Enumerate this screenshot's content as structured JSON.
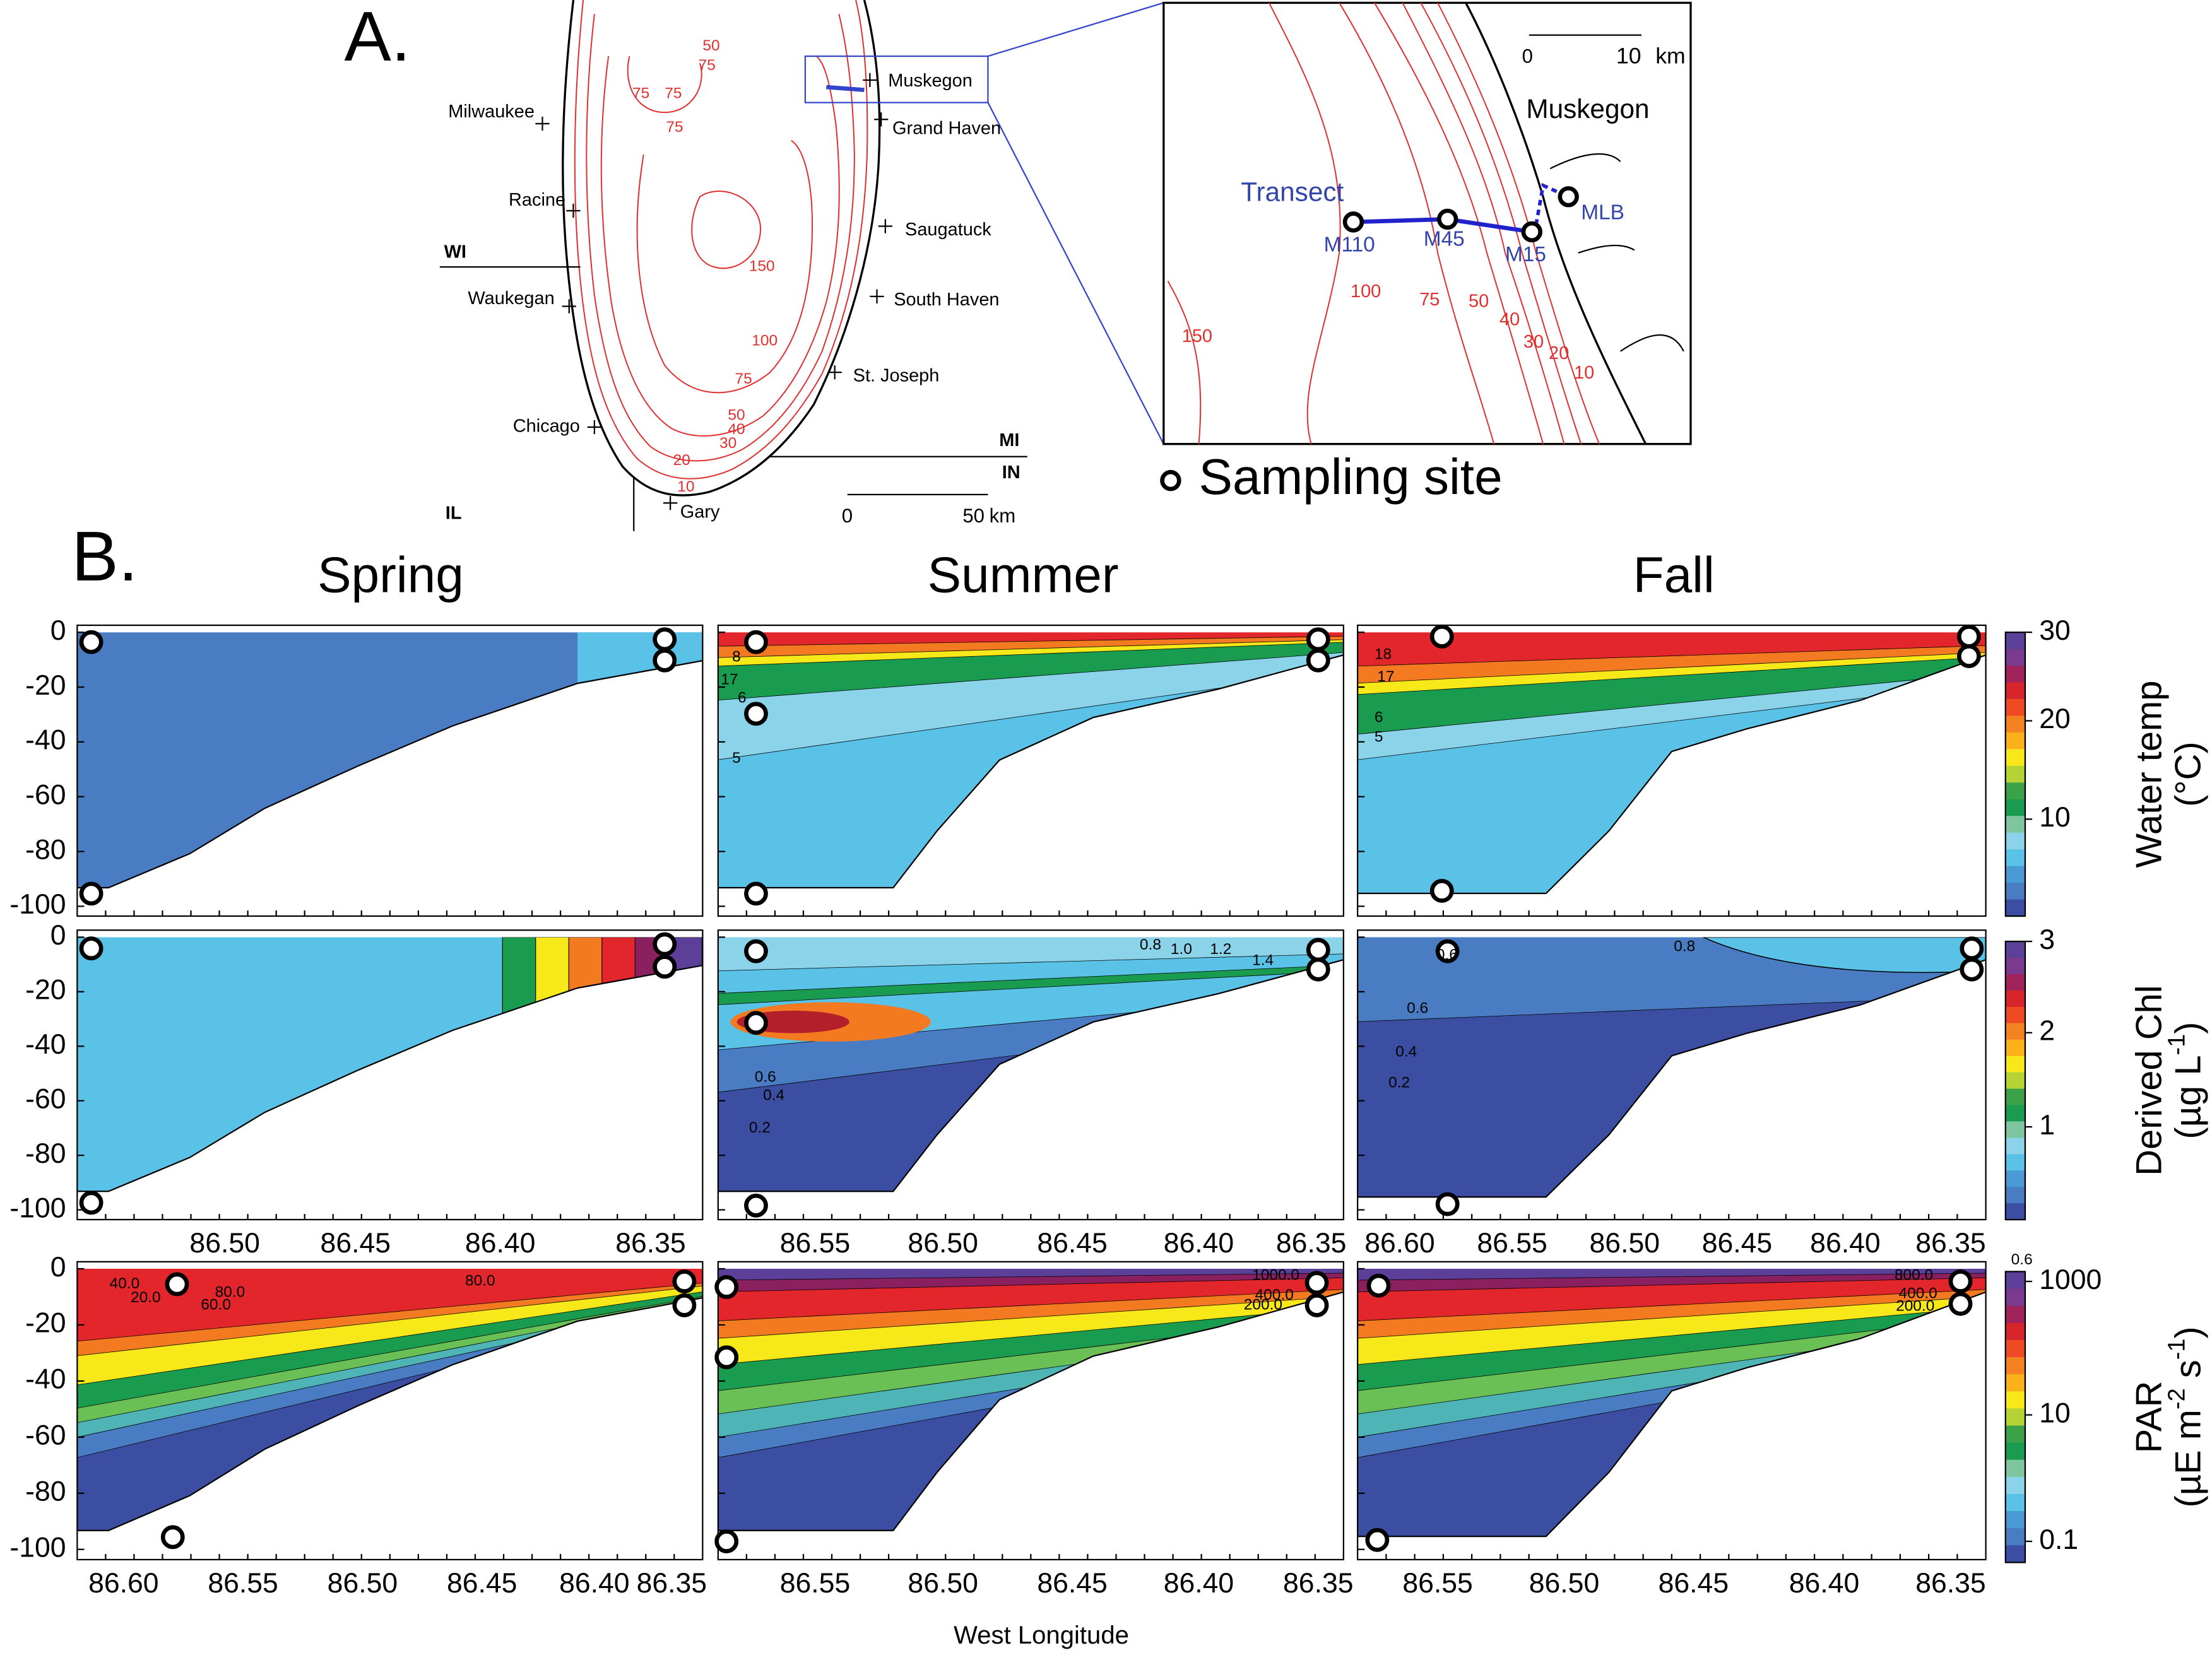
{
  "panel_a": {
    "label": "A.",
    "cities": [
      "Milwaukee",
      "Racine",
      "Waukegan",
      "Chicago",
      "Gary",
      "St. Joseph",
      "South Haven",
      "Saugatuck",
      "Grand Haven",
      "Muskegon"
    ],
    "states": [
      "WI",
      "MI",
      "IN",
      "IL"
    ],
    "depth_labels": [
      "50",
      "75",
      "75",
      "75",
      "75",
      "150",
      "100",
      "75",
      "50",
      "40",
      "30",
      "20",
      "10"
    ],
    "scale_ticks": [
      "0",
      "50"
    ],
    "scale_unit": "km",
    "inset": {
      "scale_ticks": [
        "0",
        "10"
      ],
      "scale_unit": "km",
      "city": "Muskegon",
      "transect": "Transect",
      "sites": [
        "M110",
        "M45",
        "M15",
        "MLB"
      ],
      "depth_labels": [
        "150",
        "100",
        "75",
        "50",
        "40",
        "30",
        "20",
        "10"
      ]
    },
    "legend": "Sampling site"
  },
  "panel_b": {
    "label": "B.",
    "seasons": [
      "Spring",
      "Summer",
      "Fall"
    ],
    "y_ticks": [
      "0",
      "-20",
      "-40",
      "-60",
      "-80",
      "-100"
    ],
    "x_ticks_middle": [
      [
        "86.50",
        "86.45",
        "86.40",
        "86.35"
      ],
      [
        "86.55",
        "86.50",
        "86.45",
        "86.40",
        "86.35"
      ],
      [
        "86.60",
        "86.55",
        "86.50",
        "86.45",
        "86.40",
        "86.35"
      ]
    ],
    "x_ticks_bottom": [
      [
        "86.60",
        "86.55",
        "86.50",
        "86.45",
        "86.40",
        "86.35"
      ],
      [
        "86.55",
        "86.50",
        "86.45",
        "86.40",
        "86.35"
      ],
      [
        "86.55",
        "86.50",
        "86.45",
        "86.40",
        "86.35"
      ]
    ],
    "x_label": "West Longitude",
    "colorbars": [
      {
        "title": "Water temp",
        "unit": [
          "(°C)"
        ],
        "ticks": [
          "30",
          "20",
          "10"
        ]
      },
      {
        "title": "Derived Chl",
        "unit": [
          "(µg L",
          "-1",
          ")"
        ],
        "ticks": [
          "3",
          "2",
          "1"
        ]
      },
      {
        "title": "PAR",
        "unit": [
          "(µE m",
          "-2",
          " s",
          "-1",
          ")"
        ],
        "ticks": [
          "1000",
          "10",
          "0.1"
        ],
        "extra": "0.6"
      }
    ],
    "contour_labels": {
      "temp_summer": [
        "17",
        "8",
        "6",
        "5"
      ],
      "temp_fall": [
        "18",
        "17",
        "6",
        "5"
      ],
      "chl_summer": [
        "0.8",
        "1.0",
        "1.2",
        "1.4",
        "0.6",
        "0.4",
        "0.2"
      ],
      "chl_fall": [
        "0.6",
        "0.8",
        "0.6",
        "0.4",
        "0.2"
      ],
      "par_spring": [
        "40.0",
        "20.0",
        "80.0",
        "60.0",
        "80.0"
      ],
      "par_summer": [
        "1000.0",
        "400.0",
        "200.0"
      ],
      "par_fall": [
        "800.0",
        "400.0",
        "200.0"
      ]
    }
  }
}
